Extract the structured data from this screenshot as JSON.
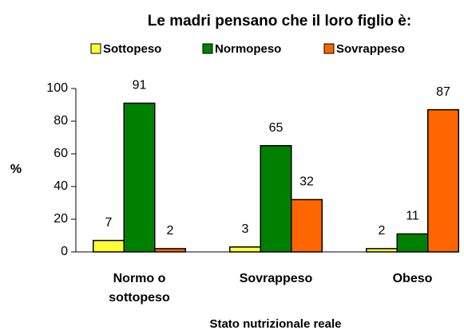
{
  "chart_data": {
    "type": "bar",
    "title": "Le madri pensano che il loro figlio è:",
    "categories": [
      "Normo o sottopeso",
      "Sovrappeso",
      "Obeso"
    ],
    "series": [
      {
        "name": "Sottopeso",
        "color": "#ffff33",
        "values": [
          7,
          3,
          2
        ]
      },
      {
        "name": "Normopeso",
        "color": "#008000",
        "values": [
          91,
          65,
          11
        ]
      },
      {
        "name": "Sovrappeso",
        "color": "#ff6600",
        "values": [
          2,
          32,
          87
        ]
      }
    ],
    "ylabel": "%",
    "xlabel": "Stato nutrizionale reale",
    "ylim": [
      0,
      100
    ],
    "yticks": [
      0,
      20,
      40,
      60,
      80,
      100
    ],
    "grid": false,
    "legend": "top"
  }
}
